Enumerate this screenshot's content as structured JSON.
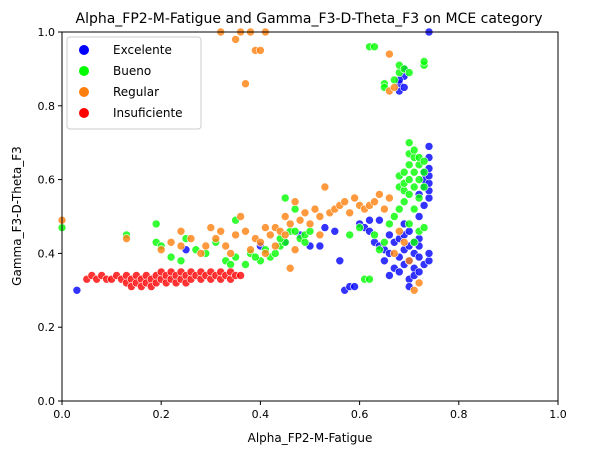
{
  "chart_data": {
    "type": "scatter",
    "title": "Alpha_FP2-M-Fatigue and Gamma_F3-D-Theta_F3 on MCE category",
    "xlabel": "Alpha_FP2-M-Fatigue",
    "ylabel": "Gamma_F3-D-Theta_F3",
    "xlim": [
      0.0,
      1.0
    ],
    "ylim": [
      0.0,
      1.0
    ],
    "xticks": [
      "0.0",
      "0.2",
      "0.4",
      "0.6",
      "0.8",
      "1.0"
    ],
    "yticks": [
      "0.0",
      "0.2",
      "0.4",
      "0.6",
      "0.8",
      "1.0"
    ],
    "grid": false,
    "legend_position": "top-left",
    "series": [
      {
        "name": "Excelente",
        "color": "#0000ff",
        "points": [
          [
            0.03,
            0.3
          ],
          [
            0.25,
            0.41
          ],
          [
            0.4,
            0.42
          ],
          [
            0.45,
            0.43
          ],
          [
            0.48,
            0.45
          ],
          [
            0.5,
            0.42
          ],
          [
            0.52,
            0.42
          ],
          [
            0.53,
            0.47
          ],
          [
            0.55,
            0.46
          ],
          [
            0.56,
            0.38
          ],
          [
            0.57,
            0.3
          ],
          [
            0.58,
            0.31
          ],
          [
            0.59,
            0.31
          ],
          [
            0.6,
            0.48
          ],
          [
            0.61,
            0.47
          ],
          [
            0.62,
            0.49
          ],
          [
            0.63,
            0.43
          ],
          [
            0.64,
            0.42
          ],
          [
            0.65,
            0.41
          ],
          [
            0.65,
            0.38
          ],
          [
            0.66,
            0.4
          ],
          [
            0.66,
            0.34
          ],
          [
            0.67,
            0.43
          ],
          [
            0.67,
            0.36
          ],
          [
            0.68,
            0.44
          ],
          [
            0.68,
            0.39
          ],
          [
            0.68,
            0.35
          ],
          [
            0.69,
            0.45
          ],
          [
            0.69,
            0.41
          ],
          [
            0.69,
            0.37
          ],
          [
            0.7,
            0.42
          ],
          [
            0.7,
            0.38
          ],
          [
            0.7,
            0.33
          ],
          [
            0.7,
            0.31
          ],
          [
            0.71,
            0.4
          ],
          [
            0.71,
            0.36
          ],
          [
            0.71,
            0.34
          ],
          [
            0.72,
            0.44
          ],
          [
            0.72,
            0.39
          ],
          [
            0.72,
            0.35
          ],
          [
            0.73,
            0.37
          ],
          [
            0.73,
            0.58
          ],
          [
            0.73,
            0.6
          ],
          [
            0.73,
            0.62
          ],
          [
            0.74,
            0.55
          ],
          [
            0.74,
            0.57
          ],
          [
            0.74,
            0.59
          ],
          [
            0.74,
            0.61
          ],
          [
            0.74,
            0.63
          ],
          [
            0.74,
            0.66
          ],
          [
            0.74,
            0.69
          ],
          [
            0.74,
            0.38
          ],
          [
            0.74,
            0.4
          ],
          [
            0.73,
            0.53
          ],
          [
            0.72,
            0.56
          ],
          [
            0.72,
            0.5
          ],
          [
            0.68,
            0.84
          ],
          [
            0.68,
            0.86
          ],
          [
            0.69,
            0.88
          ],
          [
            0.69,
            0.9
          ],
          [
            0.69,
            0.85
          ],
          [
            0.68,
            0.87
          ],
          [
            0.74,
            1.0
          ],
          [
            0.66,
            0.45
          ],
          [
            0.64,
            0.49
          ],
          [
            0.62,
            0.46
          ],
          [
            0.69,
            0.48
          ],
          [
            0.7,
            0.46
          ],
          [
            0.71,
            0.43
          ],
          [
            0.72,
            0.42
          ]
        ]
      },
      {
        "name": "Bueno",
        "color": "#00ff00",
        "points": [
          [
            0.0,
            0.47
          ],
          [
            0.13,
            0.45
          ],
          [
            0.19,
            0.48
          ],
          [
            0.19,
            0.43
          ],
          [
            0.2,
            0.42
          ],
          [
            0.22,
            0.39
          ],
          [
            0.24,
            0.38
          ],
          [
            0.25,
            0.44
          ],
          [
            0.27,
            0.41
          ],
          [
            0.29,
            0.4
          ],
          [
            0.31,
            0.43
          ],
          [
            0.33,
            0.38
          ],
          [
            0.34,
            0.37
          ],
          [
            0.35,
            0.39
          ],
          [
            0.35,
            0.49
          ],
          [
            0.37,
            0.37
          ],
          [
            0.38,
            0.4
          ],
          [
            0.4,
            0.38
          ],
          [
            0.41,
            0.41
          ],
          [
            0.42,
            0.39
          ],
          [
            0.43,
            0.4
          ],
          [
            0.44,
            0.42
          ],
          [
            0.45,
            0.43
          ],
          [
            0.45,
            0.55
          ],
          [
            0.46,
            0.46
          ],
          [
            0.47,
            0.52
          ],
          [
            0.48,
            0.44
          ],
          [
            0.49,
            0.45
          ],
          [
            0.5,
            0.46
          ],
          [
            0.58,
            0.45
          ],
          [
            0.6,
            0.47
          ],
          [
            0.61,
            0.33
          ],
          [
            0.62,
            0.33
          ],
          [
            0.63,
            0.45
          ],
          [
            0.64,
            0.41
          ],
          [
            0.65,
            0.43
          ],
          [
            0.66,
            0.48
          ],
          [
            0.67,
            0.5
          ],
          [
            0.68,
            0.52
          ],
          [
            0.68,
            0.58
          ],
          [
            0.68,
            0.61
          ],
          [
            0.69,
            0.54
          ],
          [
            0.69,
            0.57
          ],
          [
            0.69,
            0.59
          ],
          [
            0.69,
            0.62
          ],
          [
            0.7,
            0.56
          ],
          [
            0.7,
            0.6
          ],
          [
            0.7,
            0.64
          ],
          [
            0.7,
            0.67
          ],
          [
            0.7,
            0.7
          ],
          [
            0.71,
            0.58
          ],
          [
            0.71,
            0.62
          ],
          [
            0.71,
            0.66
          ],
          [
            0.71,
            0.68
          ],
          [
            0.72,
            0.6
          ],
          [
            0.72,
            0.64
          ],
          [
            0.72,
            0.66
          ],
          [
            0.73,
            0.58
          ],
          [
            0.73,
            0.62
          ],
          [
            0.73,
            0.65
          ],
          [
            0.72,
            0.55
          ],
          [
            0.71,
            0.52
          ],
          [
            0.7,
            0.48
          ],
          [
            0.71,
            0.43
          ],
          [
            0.72,
            0.46
          ],
          [
            0.73,
            0.47
          ],
          [
            0.65,
            0.86
          ],
          [
            0.65,
            0.85
          ],
          [
            0.67,
            0.87
          ],
          [
            0.68,
            0.89
          ],
          [
            0.68,
            0.91
          ],
          [
            0.69,
            0.9
          ],
          [
            0.7,
            0.89
          ],
          [
            0.73,
            0.91
          ],
          [
            0.73,
            0.92
          ],
          [
            0.62,
            0.96
          ],
          [
            0.63,
            0.96
          ],
          [
            0.39,
            0.39
          ],
          [
            0.44,
            0.44
          ],
          [
            0.47,
            0.46
          ],
          [
            0.49,
            0.43
          ]
        ]
      },
      {
        "name": "Regular",
        "color": "#ff7f0e",
        "points": [
          [
            0.0,
            0.49
          ],
          [
            0.13,
            0.44
          ],
          [
            0.2,
            0.41
          ],
          [
            0.22,
            0.43
          ],
          [
            0.24,
            0.42
          ],
          [
            0.24,
            0.46
          ],
          [
            0.26,
            0.44
          ],
          [
            0.28,
            0.4
          ],
          [
            0.29,
            0.42
          ],
          [
            0.3,
            0.47
          ],
          [
            0.31,
            0.44
          ],
          [
            0.32,
            0.46
          ],
          [
            0.33,
            0.42
          ],
          [
            0.34,
            0.4
          ],
          [
            0.35,
            0.45
          ],
          [
            0.36,
            0.5
          ],
          [
            0.37,
            0.46
          ],
          [
            0.38,
            0.41
          ],
          [
            0.39,
            0.44
          ],
          [
            0.4,
            0.43
          ],
          [
            0.41,
            0.47
          ],
          [
            0.42,
            0.45
          ],
          [
            0.43,
            0.47
          ],
          [
            0.44,
            0.46
          ],
          [
            0.45,
            0.5
          ],
          [
            0.46,
            0.48
          ],
          [
            0.46,
            0.36
          ],
          [
            0.47,
            0.54
          ],
          [
            0.48,
            0.49
          ],
          [
            0.49,
            0.51
          ],
          [
            0.5,
            0.48
          ],
          [
            0.51,
            0.52
          ],
          [
            0.52,
            0.5
          ],
          [
            0.53,
            0.58
          ],
          [
            0.54,
            0.51
          ],
          [
            0.55,
            0.52
          ],
          [
            0.56,
            0.53
          ],
          [
            0.57,
            0.54
          ],
          [
            0.58,
            0.51
          ],
          [
            0.59,
            0.55
          ],
          [
            0.6,
            0.53
          ],
          [
            0.61,
            0.52
          ],
          [
            0.62,
            0.53
          ],
          [
            0.63,
            0.54
          ],
          [
            0.64,
            0.56
          ],
          [
            0.65,
            0.52
          ],
          [
            0.66,
            0.55
          ],
          [
            0.67,
            0.4
          ],
          [
            0.68,
            0.46
          ],
          [
            0.69,
            0.43
          ],
          [
            0.7,
            0.38
          ],
          [
            0.71,
            0.3
          ],
          [
            0.72,
            0.32
          ],
          [
            0.66,
            0.84
          ],
          [
            0.67,
            0.85
          ],
          [
            0.66,
            0.94
          ],
          [
            0.32,
            1.0
          ],
          [
            0.35,
            0.98
          ],
          [
            0.36,
            1.0
          ],
          [
            0.37,
            0.86
          ],
          [
            0.38,
            1.0
          ],
          [
            0.39,
            0.95
          ],
          [
            0.4,
            0.95
          ],
          [
            0.41,
            1.0
          ],
          [
            0.47,
            0.41
          ],
          [
            0.52,
            0.45
          ],
          [
            0.43,
            0.42
          ],
          [
            0.45,
            0.45
          ],
          [
            0.41,
            0.4
          ]
        ]
      },
      {
        "name": "Insuficiente",
        "color": "#ff0000",
        "points": [
          [
            0.05,
            0.33
          ],
          [
            0.06,
            0.34
          ],
          [
            0.07,
            0.33
          ],
          [
            0.08,
            0.34
          ],
          [
            0.09,
            0.33
          ],
          [
            0.1,
            0.33
          ],
          [
            0.11,
            0.34
          ],
          [
            0.12,
            0.33
          ],
          [
            0.13,
            0.34
          ],
          [
            0.13,
            0.32
          ],
          [
            0.14,
            0.33
          ],
          [
            0.14,
            0.31
          ],
          [
            0.15,
            0.34
          ],
          [
            0.15,
            0.32
          ],
          [
            0.16,
            0.33
          ],
          [
            0.16,
            0.31
          ],
          [
            0.17,
            0.34
          ],
          [
            0.17,
            0.32
          ],
          [
            0.18,
            0.33
          ],
          [
            0.18,
            0.31
          ],
          [
            0.19,
            0.34
          ],
          [
            0.19,
            0.32
          ],
          [
            0.2,
            0.33
          ],
          [
            0.2,
            0.35
          ],
          [
            0.21,
            0.34
          ],
          [
            0.21,
            0.32
          ],
          [
            0.22,
            0.33
          ],
          [
            0.22,
            0.35
          ],
          [
            0.23,
            0.34
          ],
          [
            0.23,
            0.32
          ],
          [
            0.24,
            0.33
          ],
          [
            0.24,
            0.35
          ],
          [
            0.25,
            0.34
          ],
          [
            0.25,
            0.32
          ],
          [
            0.26,
            0.33
          ],
          [
            0.26,
            0.35
          ],
          [
            0.27,
            0.34
          ],
          [
            0.28,
            0.33
          ],
          [
            0.28,
            0.35
          ],
          [
            0.29,
            0.34
          ],
          [
            0.3,
            0.33
          ],
          [
            0.3,
            0.35
          ],
          [
            0.31,
            0.34
          ],
          [
            0.32,
            0.33
          ],
          [
            0.32,
            0.35
          ],
          [
            0.33,
            0.34
          ],
          [
            0.34,
            0.33
          ],
          [
            0.34,
            0.35
          ],
          [
            0.35,
            0.34
          ],
          [
            0.36,
            0.34
          ]
        ]
      }
    ]
  }
}
